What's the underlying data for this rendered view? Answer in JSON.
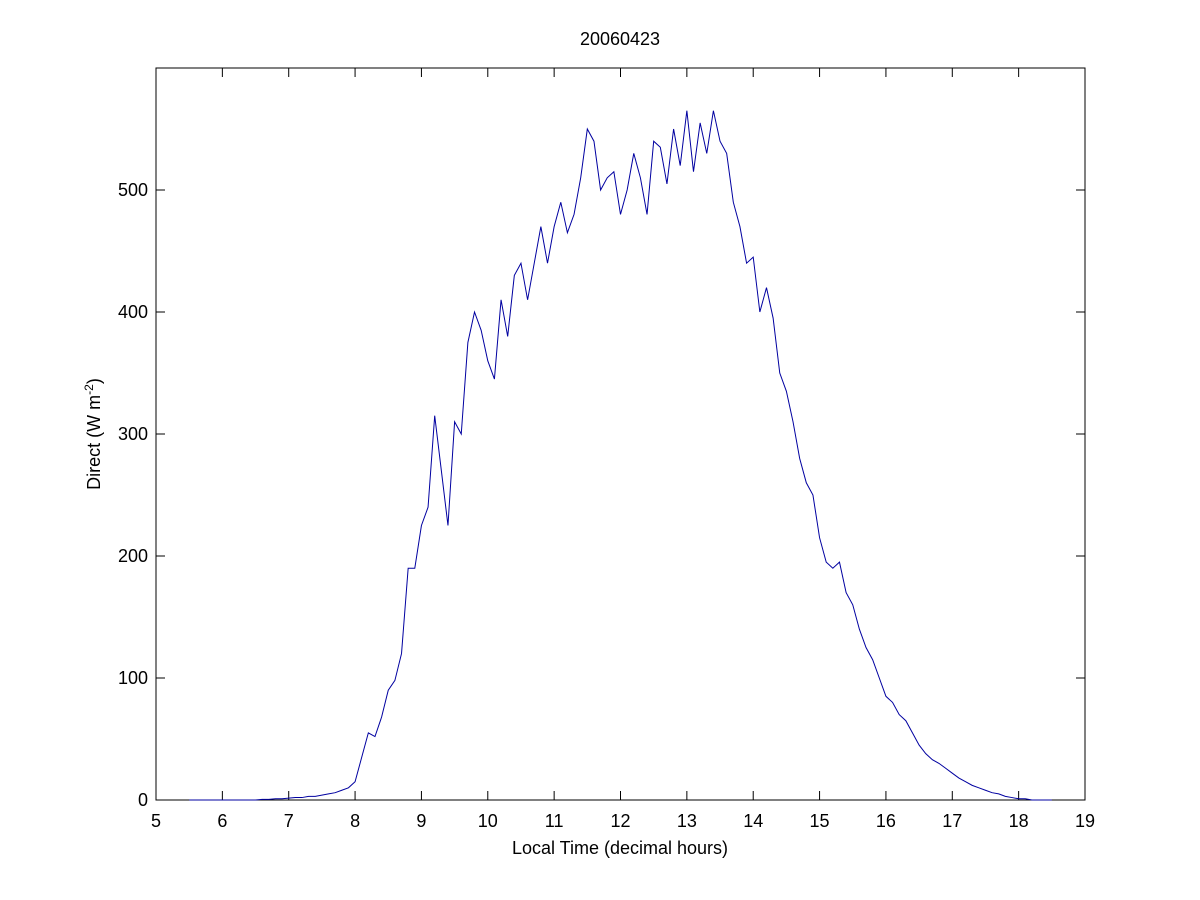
{
  "chart_data": {
    "type": "line",
    "title": "20060423",
    "xlabel": "Local Time (decimal hours)",
    "ylabel": {
      "text": "Direct (W m",
      "superscript": "-2",
      "suffix": ")"
    },
    "x": [
      5.5,
      5.6,
      5.7,
      5.8,
      5.9,
      6.0,
      6.1,
      6.2,
      6.3,
      6.4,
      6.5,
      6.6,
      6.7,
      6.8,
      6.9,
      7.0,
      7.1,
      7.2,
      7.3,
      7.4,
      7.5,
      7.6,
      7.7,
      7.8,
      7.9,
      8.0,
      8.1,
      8.2,
      8.3,
      8.4,
      8.5,
      8.6,
      8.7,
      8.8,
      8.9,
      9.0,
      9.1,
      9.2,
      9.3,
      9.4,
      9.5,
      9.6,
      9.7,
      9.8,
      9.9,
      10.0,
      10.1,
      10.2,
      10.3,
      10.4,
      10.5,
      10.6,
      10.7,
      10.8,
      10.9,
      11.0,
      11.1,
      11.2,
      11.3,
      11.4,
      11.5,
      11.6,
      11.7,
      11.8,
      11.9,
      12.0,
      12.1,
      12.2,
      12.3,
      12.4,
      12.5,
      12.6,
      12.7,
      12.8,
      12.9,
      13.0,
      13.1,
      13.2,
      13.3,
      13.4,
      13.5,
      13.6,
      13.7,
      13.8,
      13.9,
      14.0,
      14.1,
      14.2,
      14.3,
      14.4,
      14.5,
      14.6,
      14.7,
      14.8,
      14.9,
      15.0,
      15.1,
      15.2,
      15.3,
      15.4,
      15.5,
      15.6,
      15.7,
      15.8,
      15.9,
      16.0,
      16.1,
      16.2,
      16.3,
      16.4,
      16.5,
      16.6,
      16.7,
      16.8,
      16.9,
      17.0,
      17.1,
      17.2,
      17.3,
      17.4,
      17.5,
      17.6,
      17.7,
      17.8,
      17.9,
      18.0,
      18.1,
      18.2,
      18.3,
      18.4,
      18.5
    ],
    "series": [
      {
        "color": "#0000a0",
        "values": [
          0,
          0,
          0,
          0,
          0,
          0,
          0,
          0,
          0,
          0,
          0,
          0.5,
          0.5,
          1,
          1,
          1.5,
          2,
          2,
          3,
          3,
          4,
          5,
          6,
          8,
          10,
          15,
          35,
          55,
          52,
          68,
          90,
          98,
          120,
          190,
          190,
          225,
          240,
          315,
          270,
          225,
          310,
          300,
          375,
          400,
          385,
          360,
          345,
          410,
          380,
          430,
          440,
          410,
          440,
          470,
          440,
          470,
          490,
          465,
          480,
          510,
          550,
          540,
          500,
          510,
          515,
          480,
          500,
          530,
          510,
          480,
          540,
          535,
          505,
          550,
          520,
          565,
          515,
          555,
          530,
          565,
          540,
          530,
          490,
          470,
          440,
          445,
          400,
          420,
          395,
          350,
          335,
          310,
          280,
          260,
          250,
          215,
          195,
          190,
          195,
          170,
          160,
          140,
          125,
          115,
          100,
          85,
          80,
          70,
          65,
          55,
          45,
          38,
          33,
          30,
          26,
          22,
          18,
          15,
          12,
          10,
          8,
          6,
          5,
          3,
          2,
          1,
          1,
          0,
          0,
          0,
          0
        ]
      }
    ],
    "xlim": [
      5,
      19
    ],
    "xticks": [
      5,
      6,
      7,
      8,
      9,
      10,
      11,
      12,
      13,
      14,
      15,
      16,
      17,
      18,
      19
    ],
    "ylim": [
      0,
      600
    ],
    "yticks": [
      0,
      100,
      200,
      300,
      400,
      500
    ]
  }
}
